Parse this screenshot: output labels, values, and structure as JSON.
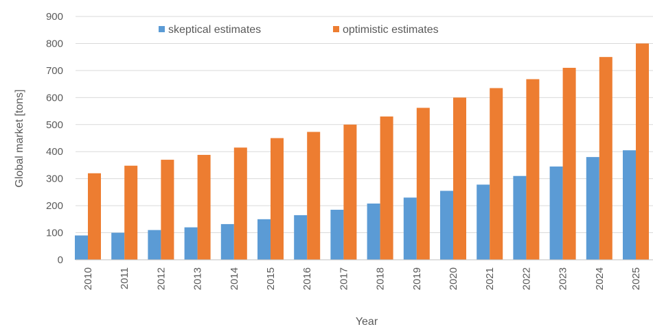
{
  "chart_data": {
    "type": "bar",
    "title": "",
    "xlabel": "Year",
    "ylabel": "Global market [tons]",
    "ylim": [
      0,
      900
    ],
    "yticks": [
      0,
      100,
      200,
      300,
      400,
      500,
      600,
      700,
      800,
      900
    ],
    "grid": true,
    "legend_position": "top",
    "categories": [
      "2010",
      "2011",
      "2012",
      "2013",
      "2014",
      "2015",
      "2016",
      "2017",
      "2018",
      "2019",
      "2020",
      "2021",
      "2022",
      "2023",
      "2024",
      "2025"
    ],
    "series": [
      {
        "name": "skeptical estimates",
        "color": "#5b9bd5",
        "values": [
          90,
          100,
          110,
          120,
          132,
          150,
          165,
          185,
          208,
          230,
          255,
          278,
          310,
          345,
          380,
          405
        ]
      },
      {
        "name": "optimistic estimates",
        "color": "#ed7d31",
        "values": [
          320,
          348,
          370,
          388,
          415,
          450,
          473,
          500,
          530,
          562,
          600,
          635,
          668,
          710,
          750,
          800
        ]
      }
    ]
  }
}
